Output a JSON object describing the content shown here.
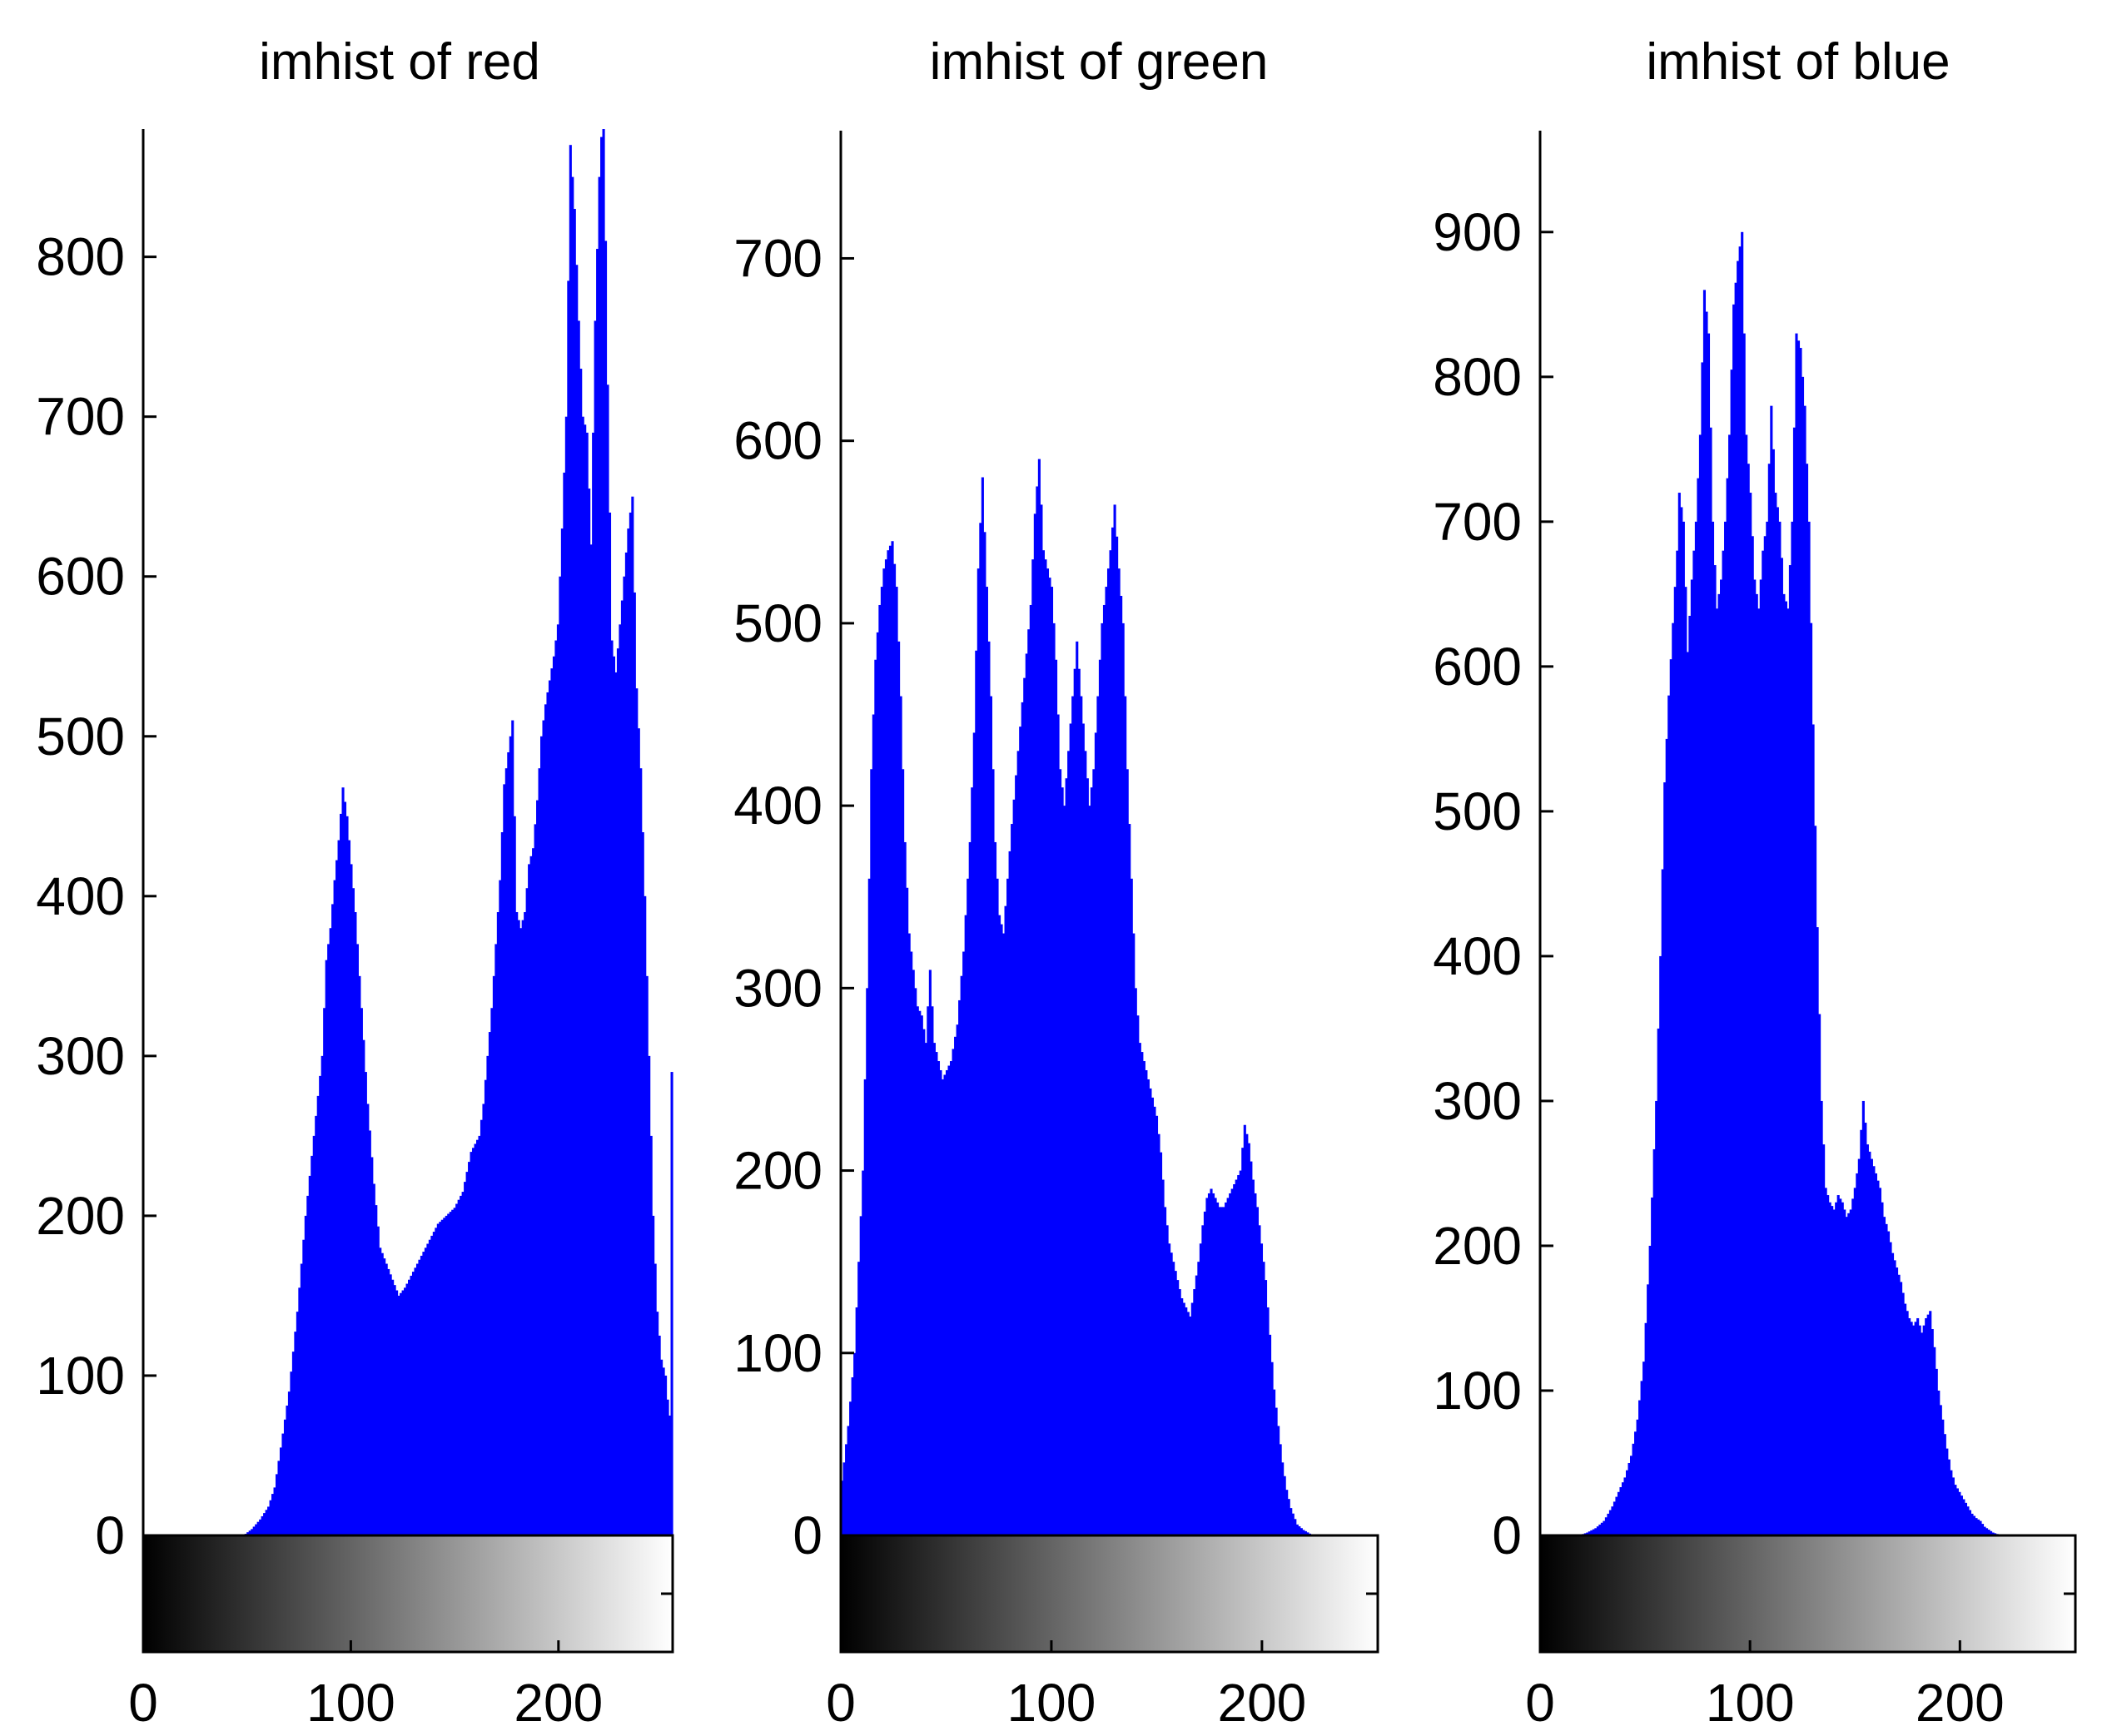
{
  "chart_data": [
    {
      "type": "bar",
      "title": "imhist of red",
      "xlim": [
        0,
        255
      ],
      "ylim": [
        0,
        880
      ],
      "xticks": [
        "0",
        "100",
        "200"
      ],
      "yticks": [
        "0",
        "100",
        "200",
        "300",
        "400",
        "500",
        "600",
        "700",
        "800"
      ],
      "bar_color": "#0000ff",
      "colorbar": "grayscale 0-255 below axis",
      "profile": [
        [
          0,
          0
        ],
        [
          48,
          0
        ],
        [
          52,
          4
        ],
        [
          56,
          10
        ],
        [
          60,
          18
        ],
        [
          63,
          30
        ],
        [
          66,
          55
        ],
        [
          70,
          90
        ],
        [
          74,
          140
        ],
        [
          78,
          200
        ],
        [
          82,
          250
        ],
        [
          86,
          300
        ],
        [
          88,
          360
        ],
        [
          90,
          380
        ],
        [
          92,
          410
        ],
        [
          94,
          435
        ],
        [
          96,
          468
        ],
        [
          98,
          450
        ],
        [
          100,
          420
        ],
        [
          102,
          390
        ],
        [
          105,
          330
        ],
        [
          108,
          270
        ],
        [
          111,
          220
        ],
        [
          114,
          180
        ],
        [
          117,
          170
        ],
        [
          120,
          160
        ],
        [
          123,
          150
        ],
        [
          126,
          155
        ],
        [
          130,
          165
        ],
        [
          134,
          175
        ],
        [
          138,
          185
        ],
        [
          142,
          195
        ],
        [
          146,
          200
        ],
        [
          150,
          205
        ],
        [
          154,
          215
        ],
        [
          158,
          240
        ],
        [
          162,
          250
        ],
        [
          164,
          270
        ],
        [
          166,
          300
        ],
        [
          168,
          330
        ],
        [
          170,
          370
        ],
        [
          172,
          410
        ],
        [
          174,
          470
        ],
        [
          176,
          490
        ],
        [
          178,
          510
        ],
        [
          180,
          390
        ],
        [
          182,
          380
        ],
        [
          184,
          390
        ],
        [
          186,
          420
        ],
        [
          188,
          430
        ],
        [
          190,
          460
        ],
        [
          192,
          500
        ],
        [
          194,
          520
        ],
        [
          196,
          535
        ],
        [
          198,
          550
        ],
        [
          200,
          570
        ],
        [
          202,
          630
        ],
        [
          204,
          700
        ],
        [
          206,
          870
        ],
        [
          208,
          830
        ],
        [
          210,
          760
        ],
        [
          212,
          700
        ],
        [
          214,
          690
        ],
        [
          216,
          620
        ],
        [
          218,
          760
        ],
        [
          220,
          850
        ],
        [
          222,
          900
        ],
        [
          224,
          720
        ],
        [
          226,
          560
        ],
        [
          228,
          540
        ],
        [
          230,
          570
        ],
        [
          232,
          600
        ],
        [
          234,
          630
        ],
        [
          236,
          650
        ],
        [
          238,
          530
        ],
        [
          240,
          480
        ],
        [
          242,
          400
        ],
        [
          244,
          300
        ],
        [
          246,
          200
        ],
        [
          248,
          140
        ],
        [
          250,
          110
        ],
        [
          252,
          100
        ],
        [
          253,
          85
        ],
        [
          254,
          75
        ],
        [
          255,
          290
        ]
      ]
    },
    {
      "type": "bar",
      "title": "imhist of green",
      "xlim": [
        0,
        255
      ],
      "ylim": [
        0,
        770
      ],
      "xticks": [
        "0",
        "100",
        "200"
      ],
      "yticks": [
        "0",
        "100",
        "200",
        "300",
        "400",
        "500",
        "600",
        "700"
      ],
      "bar_color": "#0000ff",
      "colorbar": "grayscale 0-255 below axis",
      "profile": [
        [
          0,
          30
        ],
        [
          3,
          60
        ],
        [
          6,
          100
        ],
        [
          8,
          150
        ],
        [
          10,
          200
        ],
        [
          12,
          300
        ],
        [
          14,
          420
        ],
        [
          16,
          480
        ],
        [
          18,
          510
        ],
        [
          20,
          530
        ],
        [
          22,
          540
        ],
        [
          24,
          545
        ],
        [
          26,
          520
        ],
        [
          28,
          460
        ],
        [
          30,
          380
        ],
        [
          32,
          330
        ],
        [
          34,
          310
        ],
        [
          36,
          290
        ],
        [
          38,
          285
        ],
        [
          40,
          270
        ],
        [
          42,
          310
        ],
        [
          44,
          270
        ],
        [
          46,
          260
        ],
        [
          48,
          250
        ],
        [
          50,
          255
        ],
        [
          52,
          260
        ],
        [
          55,
          280
        ],
        [
          58,
          320
        ],
        [
          61,
          380
        ],
        [
          63,
          440
        ],
        [
          65,
          530
        ],
        [
          67,
          580
        ],
        [
          69,
          520
        ],
        [
          71,
          460
        ],
        [
          73,
          380
        ],
        [
          75,
          340
        ],
        [
          77,
          330
        ],
        [
          79,
          360
        ],
        [
          81,
          390
        ],
        [
          84,
          430
        ],
        [
          87,
          470
        ],
        [
          90,
          510
        ],
        [
          92,
          560
        ],
        [
          94,
          590
        ],
        [
          96,
          540
        ],
        [
          98,
          530
        ],
        [
          100,
          520
        ],
        [
          102,
          480
        ],
        [
          104,
          420
        ],
        [
          106,
          400
        ],
        [
          108,
          430
        ],
        [
          110,
          460
        ],
        [
          112,
          490
        ],
        [
          114,
          460
        ],
        [
          116,
          430
        ],
        [
          118,
          400
        ],
        [
          120,
          420
        ],
        [
          122,
          460
        ],
        [
          124,
          500
        ],
        [
          126,
          520
        ],
        [
          128,
          540
        ],
        [
          130,
          565
        ],
        [
          132,
          530
        ],
        [
          134,
          500
        ],
        [
          136,
          420
        ],
        [
          138,
          360
        ],
        [
          140,
          300
        ],
        [
          142,
          270
        ],
        [
          144,
          260
        ],
        [
          146,
          250
        ],
        [
          148,
          240
        ],
        [
          150,
          230
        ],
        [
          152,
          210
        ],
        [
          154,
          180
        ],
        [
          156,
          160
        ],
        [
          158,
          150
        ],
        [
          160,
          140
        ],
        [
          162,
          130
        ],
        [
          164,
          125
        ],
        [
          166,
          120
        ],
        [
          168,
          135
        ],
        [
          170,
          150
        ],
        [
          172,
          170
        ],
        [
          174,
          185
        ],
        [
          176,
          190
        ],
        [
          178,
          185
        ],
        [
          180,
          180
        ],
        [
          182,
          180
        ],
        [
          184,
          185
        ],
        [
          186,
          190
        ],
        [
          188,
          195
        ],
        [
          190,
          200
        ],
        [
          192,
          225
        ],
        [
          194,
          215
        ],
        [
          196,
          195
        ],
        [
          198,
          180
        ],
        [
          200,
          160
        ],
        [
          202,
          140
        ],
        [
          204,
          110
        ],
        [
          206,
          80
        ],
        [
          208,
          60
        ],
        [
          210,
          40
        ],
        [
          212,
          25
        ],
        [
          214,
          15
        ],
        [
          217,
          6
        ],
        [
          220,
          3
        ],
        [
          223,
          1
        ],
        [
          225,
          0
        ],
        [
          255,
          0
        ]
      ]
    },
    {
      "type": "bar",
      "title": "imhist of blue",
      "xlim": [
        0,
        255
      ],
      "ylim": [
        0,
        970
      ],
      "xticks": [
        "0",
        "100",
        "200"
      ],
      "yticks": [
        "0",
        "100",
        "200",
        "300",
        "400",
        "500",
        "600",
        "700",
        "800",
        "900"
      ],
      "bar_color": "#0000ff",
      "colorbar": "grayscale 0-255 below axis",
      "profile": [
        [
          0,
          0
        ],
        [
          18,
          0
        ],
        [
          22,
          2
        ],
        [
          26,
          5
        ],
        [
          30,
          10
        ],
        [
          34,
          20
        ],
        [
          37,
          30
        ],
        [
          40,
          40
        ],
        [
          43,
          55
        ],
        [
          46,
          80
        ],
        [
          49,
          120
        ],
        [
          52,
          200
        ],
        [
          55,
          300
        ],
        [
          57,
          400
        ],
        [
          59,
          520
        ],
        [
          61,
          580
        ],
        [
          63,
          630
        ],
        [
          65,
          680
        ],
        [
          66,
          720
        ],
        [
          68,
          700
        ],
        [
          70,
          610
        ],
        [
          72,
          660
        ],
        [
          74,
          700
        ],
        [
          76,
          760
        ],
        [
          78,
          860
        ],
        [
          80,
          830
        ],
        [
          82,
          700
        ],
        [
          84,
          640
        ],
        [
          86,
          660
        ],
        [
          88,
          700
        ],
        [
          90,
          760
        ],
        [
          92,
          850
        ],
        [
          94,
          880
        ],
        [
          96,
          900
        ],
        [
          98,
          760
        ],
        [
          100,
          720
        ],
        [
          102,
          660
        ],
        [
          104,
          640
        ],
        [
          106,
          680
        ],
        [
          108,
          700
        ],
        [
          110,
          780
        ],
        [
          112,
          720
        ],
        [
          114,
          700
        ],
        [
          116,
          650
        ],
        [
          118,
          640
        ],
        [
          120,
          700
        ],
        [
          122,
          830
        ],
        [
          124,
          820
        ],
        [
          126,
          780
        ],
        [
          128,
          700
        ],
        [
          130,
          560
        ],
        [
          132,
          420
        ],
        [
          134,
          300
        ],
        [
          136,
          240
        ],
        [
          138,
          230
        ],
        [
          140,
          225
        ],
        [
          142,
          235
        ],
        [
          144,
          230
        ],
        [
          146,
          220
        ],
        [
          148,
          225
        ],
        [
          150,
          240
        ],
        [
          152,
          260
        ],
        [
          154,
          300
        ],
        [
          156,
          270
        ],
        [
          158,
          260
        ],
        [
          160,
          250
        ],
        [
          162,
          240
        ],
        [
          164,
          220
        ],
        [
          166,
          210
        ],
        [
          168,
          195
        ],
        [
          170,
          185
        ],
        [
          172,
          175
        ],
        [
          174,
          160
        ],
        [
          176,
          150
        ],
        [
          178,
          145
        ],
        [
          180,
          150
        ],
        [
          182,
          140
        ],
        [
          184,
          150
        ],
        [
          186,
          155
        ],
        [
          188,
          130
        ],
        [
          190,
          100
        ],
        [
          192,
          80
        ],
        [
          194,
          60
        ],
        [
          196,
          45
        ],
        [
          198,
          35
        ],
        [
          200,
          30
        ],
        [
          202,
          25
        ],
        [
          204,
          20
        ],
        [
          206,
          15
        ],
        [
          208,
          12
        ],
        [
          210,
          10
        ],
        [
          212,
          6
        ],
        [
          214,
          4
        ],
        [
          216,
          2
        ],
        [
          218,
          1
        ],
        [
          220,
          0
        ],
        [
          255,
          0
        ]
      ]
    }
  ]
}
